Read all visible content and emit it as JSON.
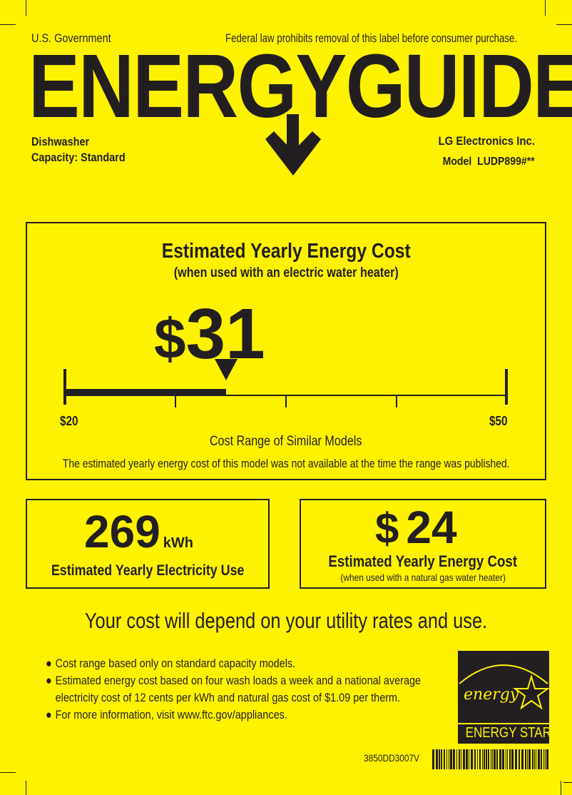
{
  "header": {
    "government": "U.S. Government",
    "notice": "Federal law prohibits removal of this label before consumer purchase.",
    "title": "ENERGYGUIDE",
    "appliance": "Dishwasher",
    "capacity": "Capacity: Standard",
    "manufacturer": "LG Electronics Inc.",
    "model": "Model  LUDP899#**"
  },
  "main_cost": {
    "title": "Estimated Yearly Energy Cost",
    "subtitle": "(when used with an electric water heater)",
    "currency": "$",
    "value": "31",
    "scale_value": 31,
    "range_min_label": "$20",
    "range_max_label": "$50",
    "range_min": 20,
    "range_max": 50,
    "range_caption": "Cost Range of Similar Models",
    "note": "The estimated yearly energy cost of this model was not available at the time the range was published."
  },
  "electricity": {
    "value": "269",
    "unit": "kWh",
    "label": "Estimated Yearly Electricity Use"
  },
  "gas_cost": {
    "currency": "$",
    "value": "24",
    "label": "Estimated Yearly Energy Cost",
    "sublabel": "(when used with a natural gas water heater)"
  },
  "disclaimer": "Your cost will depend on your utility rates and use.",
  "bullets": [
    "Cost range based only on standard capacity models.",
    "Estimated energy cost based on four wash loads a week and a national average electricity cost of 12 cents per kWh and natural gas cost of $1.09 per therm.",
    "For more information, visit www.ftc.gov/appliances."
  ],
  "energy_star": {
    "script": "energy",
    "label": "ENERGY STAR"
  },
  "barcode_text": "3850DD3007V",
  "colors": {
    "background": "#fff200",
    "ink": "#231f20"
  }
}
